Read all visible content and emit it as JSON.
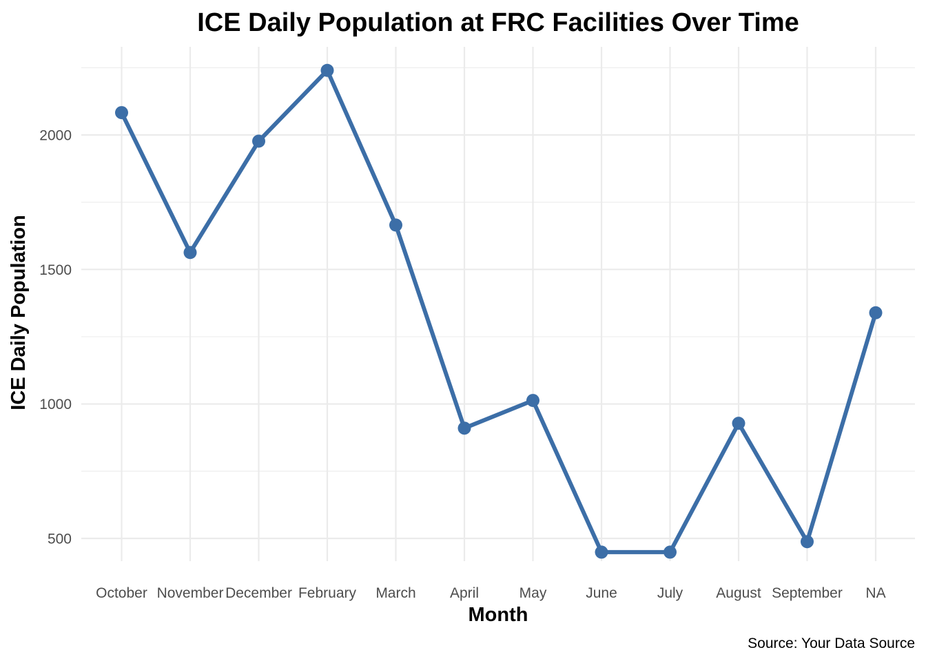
{
  "chart_data": {
    "type": "line",
    "title": "ICE Daily Population at FRC Facilities Over Time",
    "xlabel": "Month",
    "ylabel": "ICE Daily Population",
    "caption": "Source: Your Data Source",
    "categories": [
      "October",
      "November",
      "December",
      "February",
      "March",
      "April",
      "May",
      "June",
      "July",
      "August",
      "September",
      "NA"
    ],
    "series": [
      {
        "values": [
          2083,
          1563,
          1977,
          2240,
          1665,
          910,
          1013,
          449,
          449,
          928,
          488,
          1339
        ]
      }
    ],
    "yticks": [
      500,
      1000,
      1500,
      2000
    ],
    "ylim": [
      395,
      2300
    ],
    "grid": true,
    "legend": "none",
    "colors": {
      "line": "#3c6ea7",
      "grid": "#ebebeb",
      "tick_text": "#4d4d4d"
    }
  }
}
